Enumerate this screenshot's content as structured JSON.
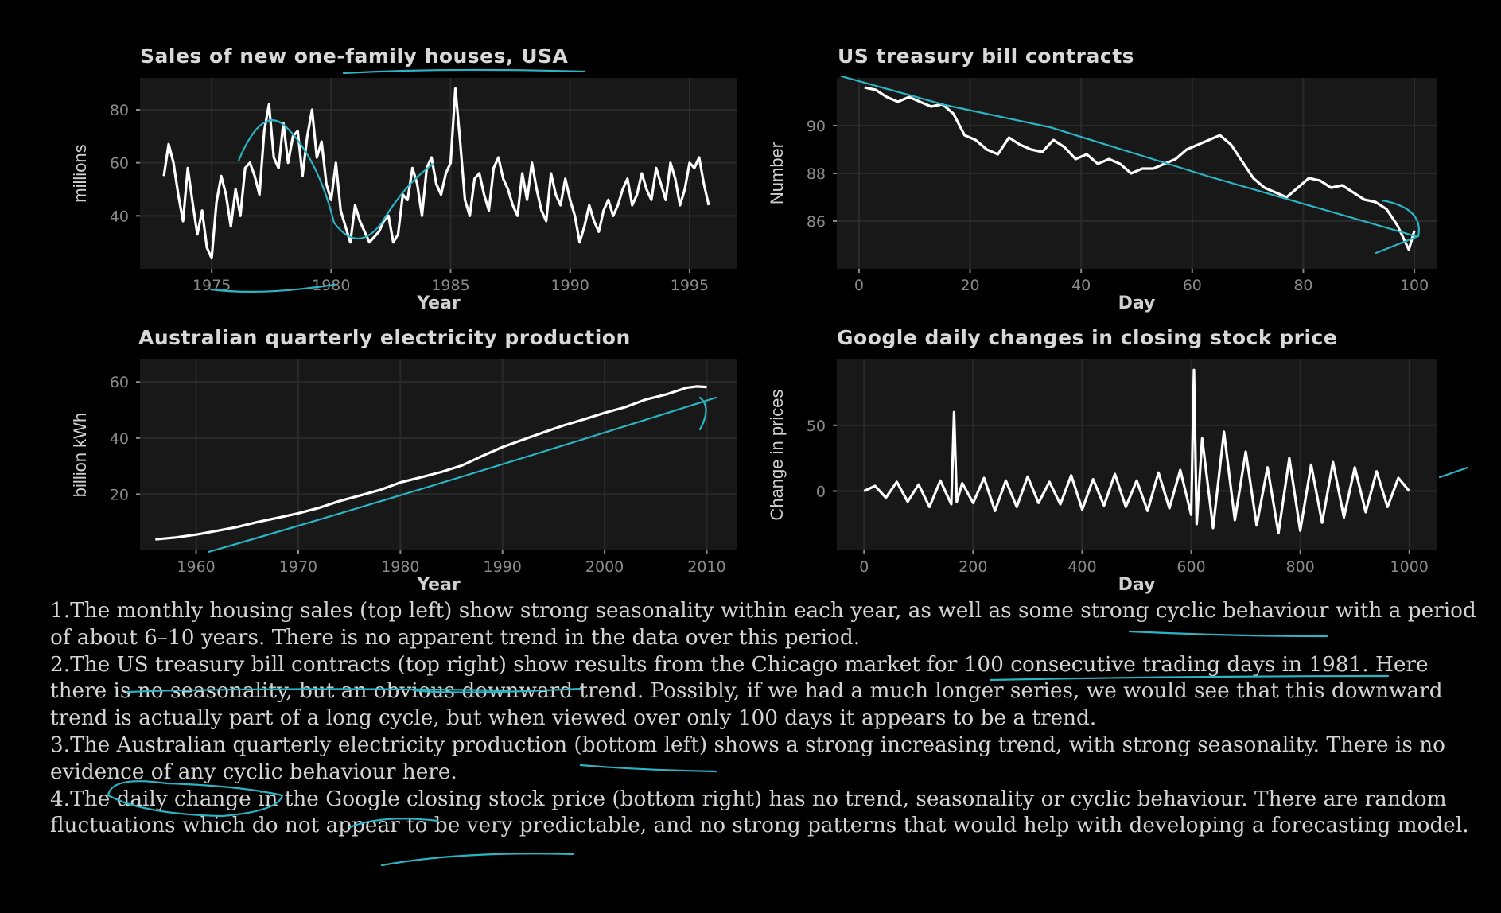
{
  "colors": {
    "background": "#000000",
    "panel": "#181818",
    "grid": "#2a2a2a",
    "line": "#ffffff",
    "annotation": "#2bb5c4",
    "text": "#d4d4d4"
  },
  "chart_data": [
    {
      "type": "line",
      "title": "Sales of new one-family houses, USA",
      "xlabel": "Year",
      "ylabel": "millions",
      "xlim": [
        1972,
        1997
      ],
      "ylim": [
        20,
        92
      ],
      "xticks": [
        1975,
        1980,
        1985,
        1990,
        1995
      ],
      "yticks": [
        40,
        60,
        80
      ],
      "grid": true,
      "series": [
        {
          "x": [
            1973,
            1973.2,
            1973.4,
            1973.6,
            1973.8,
            1974,
            1974.2,
            1974.4,
            1974.6,
            1974.8,
            1975,
            1975.2,
            1975.4,
            1975.6,
            1975.8,
            1976,
            1976.2,
            1976.4,
            1976.6,
            1976.8,
            1977,
            1977.2,
            1977.4,
            1977.6,
            1977.8,
            1978,
            1978.2,
            1978.4,
            1978.6,
            1978.8,
            1979,
            1979.2,
            1979.4,
            1979.6,
            1979.8,
            1980,
            1980.2,
            1980.4,
            1980.6,
            1980.8,
            1981,
            1981.2,
            1981.4,
            1981.6,
            1981.8,
            1982,
            1982.2,
            1982.4,
            1982.6,
            1982.8,
            1983,
            1983.2,
            1983.4,
            1983.6,
            1983.8,
            1984,
            1984.2,
            1984.4,
            1984.6,
            1984.8,
            1985,
            1985.2,
            1985.4,
            1985.6,
            1985.8,
            1986,
            1986.2,
            1986.4,
            1986.6,
            1986.8,
            1987,
            1987.2,
            1987.4,
            1987.6,
            1987.8,
            1988,
            1988.2,
            1988.4,
            1988.6,
            1988.8,
            1989,
            1989.2,
            1989.4,
            1989.6,
            1989.8,
            1990,
            1990.2,
            1990.4,
            1990.6,
            1990.8,
            1991,
            1991.2,
            1991.4,
            1991.6,
            1991.8,
            1992,
            1992.2,
            1992.4,
            1992.6,
            1992.8,
            1993,
            1993.2,
            1993.4,
            1993.6,
            1993.8,
            1994,
            1994.2,
            1994.4,
            1994.6,
            1994.8,
            1995,
            1995.2,
            1995.4,
            1995.6,
            1995.8
          ],
          "y": [
            55,
            67,
            60,
            48,
            38,
            58,
            45,
            33,
            42,
            28,
            24,
            45,
            55,
            48,
            36,
            50,
            40,
            58,
            60,
            55,
            48,
            72,
            82,
            62,
            58,
            75,
            60,
            70,
            72,
            55,
            70,
            80,
            62,
            68,
            52,
            46,
            60,
            42,
            36,
            30,
            44,
            38,
            34,
            30,
            32,
            34,
            38,
            40,
            30,
            33,
            48,
            46,
            58,
            52,
            40,
            58,
            62,
            52,
            48,
            56,
            60,
            88,
            68,
            46,
            40,
            54,
            56,
            48,
            42,
            58,
            62,
            54,
            50,
            44,
            40,
            56,
            46,
            60,
            50,
            42,
            38,
            56,
            48,
            44,
            54,
            46,
            40,
            30,
            36,
            44,
            38,
            34,
            42,
            46,
            40,
            44,
            50,
            54,
            44,
            48,
            56,
            50,
            46,
            58,
            52,
            46,
            60,
            54,
            44,
            50,
            60,
            58,
            62,
            52,
            44
          ]
        }
      ]
    },
    {
      "type": "line",
      "title": "US treasury bill contracts",
      "xlabel": "Day",
      "ylabel": "Number",
      "xlim": [
        -4,
        104
      ],
      "ylim": [
        84,
        92
      ],
      "xticks": [
        0,
        20,
        40,
        60,
        80,
        100
      ],
      "yticks": [
        86,
        88,
        90
      ],
      "grid": true,
      "series": [
        {
          "x": [
            1,
            3,
            5,
            7,
            9,
            11,
            13,
            15,
            17,
            19,
            21,
            23,
            25,
            27,
            29,
            31,
            33,
            35,
            37,
            39,
            41,
            43,
            45,
            47,
            49,
            51,
            53,
            55,
            57,
            59,
            61,
            63,
            65,
            67,
            69,
            71,
            73,
            75,
            77,
            79,
            81,
            83,
            85,
            87,
            89,
            91,
            93,
            95,
            97,
            99,
            100
          ],
          "y": [
            91.6,
            91.5,
            91.2,
            91.0,
            91.2,
            91.0,
            90.8,
            90.9,
            90.5,
            89.6,
            89.4,
            89.0,
            88.8,
            89.5,
            89.2,
            89.0,
            88.9,
            89.4,
            89.1,
            88.6,
            88.8,
            88.4,
            88.6,
            88.4,
            88.0,
            88.2,
            88.2,
            88.4,
            88.6,
            89.0,
            89.2,
            89.4,
            89.6,
            89.2,
            88.5,
            87.8,
            87.4,
            87.2,
            87.0,
            87.4,
            87.8,
            87.7,
            87.4,
            87.5,
            87.2,
            86.9,
            86.8,
            86.5,
            85.8,
            84.8,
            85.6
          ]
        }
      ]
    },
    {
      "type": "line",
      "title": "Australian quarterly electricity production",
      "xlabel": "Year",
      "ylabel": "billion kWh",
      "xlim": [
        1954.5,
        2013
      ],
      "ylim": [
        0,
        68
      ],
      "xticks": [
        1960,
        1970,
        1980,
        1990,
        2000,
        2010
      ],
      "yticks": [
        20,
        40,
        60
      ],
      "grid": true,
      "series": [
        {
          "x": [
            1956,
            1958,
            1960,
            1962,
            1964,
            1966,
            1968,
            1970,
            1972,
            1974,
            1976,
            1978,
            1980,
            1982,
            1984,
            1986,
            1988,
            1990,
            1992,
            1994,
            1996,
            1998,
            2000,
            2002,
            2004,
            2006,
            2008,
            2009,
            2010
          ],
          "y": [
            3.9,
            4.6,
            5.6,
            6.9,
            8.3,
            10.1,
            11.6,
            13.2,
            15.1,
            17.5,
            19.5,
            21.5,
            24.2,
            26.0,
            27.9,
            30.2,
            33.6,
            36.8,
            39.4,
            42.0,
            44.5,
            46.7,
            49.0,
            51.0,
            53.7,
            55.5,
            57.9,
            58.4,
            58.2
          ]
        }
      ]
    },
    {
      "type": "line",
      "title": "Google daily changes in closing stock price",
      "xlabel": "Day",
      "ylabel": "Change in prices",
      "xlim": [
        -50,
        1050
      ],
      "ylim": [
        -45,
        100
      ],
      "xticks": [
        0,
        200,
        400,
        600,
        800,
        1000
      ],
      "yticks": [
        0,
        50
      ],
      "grid": true,
      "series": [
        {
          "x": [
            0,
            20,
            40,
            60,
            80,
            100,
            120,
            140,
            160,
            165,
            170,
            180,
            200,
            220,
            240,
            260,
            280,
            300,
            320,
            340,
            360,
            380,
            400,
            420,
            440,
            460,
            480,
            500,
            520,
            540,
            560,
            580,
            600,
            605,
            610,
            620,
            640,
            660,
            680,
            700,
            720,
            740,
            760,
            780,
            800,
            820,
            840,
            860,
            880,
            900,
            920,
            940,
            960,
            980,
            1000
          ],
          "y": [
            0,
            4,
            -5,
            7,
            -8,
            5,
            -12,
            8,
            -10,
            60,
            -8,
            6,
            -9,
            10,
            -15,
            8,
            -12,
            11,
            -9,
            7,
            -10,
            12,
            -14,
            9,
            -11,
            13,
            -12,
            8,
            -15,
            14,
            -13,
            16,
            -18,
            92,
            -25,
            40,
            -28,
            45,
            -22,
            30,
            -26,
            18,
            -32,
            25,
            -30,
            20,
            -24,
            22,
            -20,
            18,
            -16,
            15,
            -12,
            10,
            0
          ]
        }
      ]
    }
  ],
  "notes": {
    "p1": "1.The monthly housing sales (top left) show strong seasonality within each year, as well as some strong cyclic behaviour with a period of about 6–10 years. There is no apparent trend in the data over this period.",
    "p2": "2.The US treasury bill contracts (top right) show results from the Chicago market for 100 consecutive trading days in 1981. Here there is no seasonality, but an obvious downward trend. Possibly, if we had a much longer series, we would see that this downward trend is actually part of a long cycle, but when viewed over only 100 days it appears to be a trend.",
    "p3": "3.The Australian quarterly electricity production (bottom left) shows a strong increasing trend, with strong seasonality. There is no evidence of any cyclic behaviour here.",
    "p4": "4.The daily change in the Google closing stock price (bottom right) has no trend, seasonality or cyclic behaviour. There are random fluctuations which do not appear to be very predictable, and no strong patterns that would help with developing a forecasting model."
  }
}
